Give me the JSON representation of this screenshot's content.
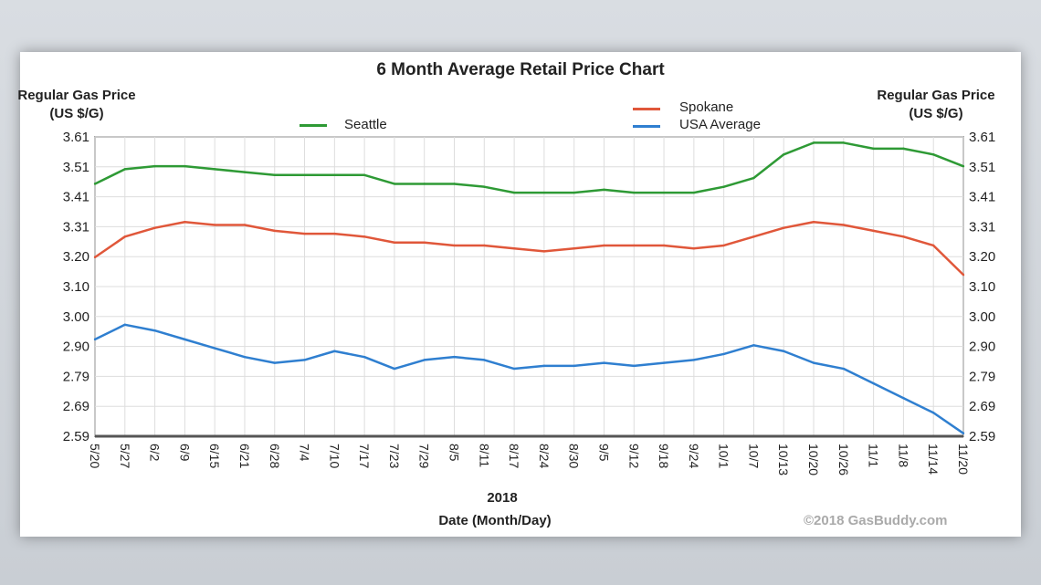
{
  "chart_data": {
    "type": "line",
    "title": "6 Month Average Retail Price Chart",
    "ylabel_left": "Regular Gas Price (US $/G)",
    "ylabel_right": "Regular Gas Price (US $/G)",
    "xlabel": "Date (Month/Day)",
    "xlabel_year": "2018",
    "ylim": [
      2.59,
      3.61
    ],
    "yticks": [
      "3.61",
      "3.51",
      "3.41",
      "3.31",
      "3.20",
      "3.10",
      "3.00",
      "2.90",
      "2.79",
      "2.69",
      "2.59"
    ],
    "categories": [
      "5/20",
      "5/27",
      "6/2",
      "6/9",
      "6/15",
      "6/21",
      "6/28",
      "7/4",
      "7/10",
      "7/17",
      "7/23",
      "7/29",
      "8/5",
      "8/11",
      "8/17",
      "8/24",
      "8/30",
      "9/5",
      "9/12",
      "9/18",
      "9/24",
      "10/1",
      "10/7",
      "10/13",
      "10/20",
      "10/26",
      "11/1",
      "11/8",
      "11/14",
      "11/20"
    ],
    "grid": true,
    "legend_placement": "top",
    "series": [
      {
        "name": "Seattle",
        "color": "#2e9a35",
        "values": [
          3.45,
          3.5,
          3.51,
          3.51,
          3.5,
          3.49,
          3.48,
          3.48,
          3.48,
          3.48,
          3.45,
          3.45,
          3.45,
          3.44,
          3.42,
          3.42,
          3.42,
          3.43,
          3.42,
          3.42,
          3.42,
          3.44,
          3.47,
          3.55,
          3.59,
          3.59,
          3.57,
          3.57,
          3.55,
          3.51
        ]
      },
      {
        "name": "Spokane",
        "color": "#e0573a",
        "values": [
          3.2,
          3.27,
          3.3,
          3.32,
          3.31,
          3.31,
          3.29,
          3.28,
          3.28,
          3.27,
          3.25,
          3.25,
          3.24,
          3.24,
          3.23,
          3.22,
          3.23,
          3.24,
          3.24,
          3.24,
          3.23,
          3.24,
          3.27,
          3.3,
          3.32,
          3.31,
          3.29,
          3.27,
          3.24,
          3.14
        ]
      },
      {
        "name": "USA Average",
        "color": "#2f7fd0",
        "values": [
          2.92,
          2.97,
          2.95,
          2.92,
          2.89,
          2.86,
          2.84,
          2.85,
          2.88,
          2.86,
          2.82,
          2.85,
          2.86,
          2.85,
          2.82,
          2.83,
          2.83,
          2.84,
          2.83,
          2.84,
          2.85,
          2.87,
          2.9,
          2.88,
          2.84,
          2.82,
          2.77,
          2.72,
          2.67,
          2.6
        ]
      }
    ]
  },
  "copyright": "©2018 GasBuddy.com"
}
